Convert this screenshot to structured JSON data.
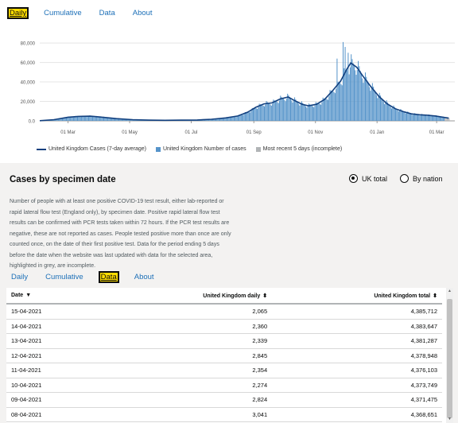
{
  "top_tabs": [
    "Daily",
    "Cumulative",
    "Data",
    "About"
  ],
  "chart_data": {
    "type": "bar",
    "x_ticks": [
      "01 Mar",
      "01 May",
      "01 Jul",
      "01 Sep",
      "01 Nov",
      "01 Jan",
      "01 Mar"
    ],
    "y_ticks": [
      "0.0",
      "20,000",
      "40,000",
      "60,000",
      "80,000"
    ],
    "ylim": [
      0,
      85000
    ],
    "series": [
      {
        "name": "United Kingdom Cases (7-day average)",
        "kind": "line",
        "color": "#12407F"
      },
      {
        "name": "United Kingdom Number of cases",
        "kind": "bar",
        "color": "#5694CA"
      },
      {
        "name": "Most recent 5 days (incomplete)",
        "kind": "bar",
        "color": "#b1b4b6"
      }
    ],
    "trend": [
      [
        0,
        150
      ],
      [
        14,
        1200
      ],
      [
        28,
        3800
      ],
      [
        38,
        4600
      ],
      [
        50,
        4800
      ],
      [
        62,
        3800
      ],
      [
        76,
        2300
      ],
      [
        92,
        1200
      ],
      [
        108,
        700
      ],
      [
        124,
        600
      ],
      [
        140,
        700
      ],
      [
        156,
        900
      ],
      [
        170,
        1600
      ],
      [
        184,
        3000
      ],
      [
        196,
        5000
      ],
      [
        206,
        9000
      ],
      [
        214,
        14000
      ],
      [
        222,
        17500
      ],
      [
        230,
        18500
      ],
      [
        238,
        22500
      ],
      [
        246,
        24500
      ],
      [
        252,
        21000
      ],
      [
        260,
        17000
      ],
      [
        266,
        15500
      ],
      [
        274,
        17000
      ],
      [
        282,
        22000
      ],
      [
        290,
        31000
      ],
      [
        298,
        41000
      ],
      [
        304,
        53000
      ],
      [
        308,
        59500
      ],
      [
        314,
        55000
      ],
      [
        320,
        46000
      ],
      [
        328,
        35000
      ],
      [
        336,
        25000
      ],
      [
        344,
        17500
      ],
      [
        352,
        12500
      ],
      [
        360,
        9500
      ],
      [
        368,
        7200
      ],
      [
        376,
        6300
      ],
      [
        384,
        5800
      ],
      [
        392,
        5000
      ],
      [
        400,
        3600
      ],
      [
        405,
        2800
      ]
    ]
  },
  "card": {
    "title": "Cases by specimen date",
    "radio_uk": "UK total",
    "radio_nation": "By nation",
    "description": "Number of people with at least one positive COVID-19 test result, either lab-reported or rapid lateral flow test (England only), by specimen date. Positive rapid lateral flow test results can be confirmed with PCR tests taken within 72 hours. If the PCR test results are negative, these are not reported as cases. People tested positive more than once are only counted once, on the date of their first positive test. Data for the period ending 5 days before the date when the website was last updated with data for the selected area, highlighted in grey, are incomplete."
  },
  "bottom_tabs": [
    "Daily",
    "Cumulative",
    "Data",
    "About"
  ],
  "table": {
    "headers": [
      "Date",
      "United Kingdom daily",
      "United Kingdom total"
    ],
    "rows": [
      [
        "15-04-2021",
        "2,065",
        "4,385,712"
      ],
      [
        "14-04-2021",
        "2,360",
        "4,383,647"
      ],
      [
        "13-04-2021",
        "2,339",
        "4,381,287"
      ],
      [
        "12-04-2021",
        "2,845",
        "4,378,948"
      ],
      [
        "11-04-2021",
        "2,354",
        "4,376,103"
      ],
      [
        "10-04-2021",
        "2,274",
        "4,373,749"
      ],
      [
        "09-04-2021",
        "2,824",
        "4,371,475"
      ],
      [
        "08-04-2021",
        "3,041",
        "4,368,651"
      ]
    ]
  }
}
